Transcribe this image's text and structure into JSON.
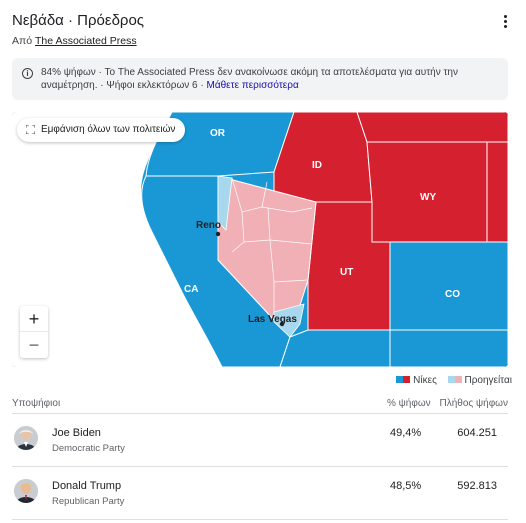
{
  "header": {
    "title": "Νεβάδα · Πρόεδρος",
    "source_prefix": "Από",
    "source_link": "The Associated Press",
    "menu_icon": "more-vert-icon"
  },
  "info": {
    "icon": "info-icon",
    "text": "84% ψήφων · Το The Associated Press δεν ανακοίνωσε ακόμη τα αποτελέσματα για αυτήν την αναμέτρηση. · Ψήφοι εκλεκτόρων 6 ·",
    "learn_more": "Μάθετε περισσότερα"
  },
  "map": {
    "show_all_label": "Εμφάνιση όλων των πολιτειών",
    "show_all_icon": "expand-icon",
    "zoom_in": "+",
    "zoom_out": "−",
    "labels": {
      "or": "OR",
      "id": "ID",
      "wy": "WY",
      "ca": "CA",
      "ut": "UT",
      "co": "CO",
      "reno": "Reno",
      "las_vegas": "Las Vegas"
    },
    "colors": {
      "dem_win": "#1a98d5",
      "dem_lead": "#a8d8ee",
      "rep_win": "#d4202f",
      "rep_lead": "#f0b0b5",
      "background": "#ffffff"
    }
  },
  "legend": {
    "wins": "Νίκες",
    "leads": "Προηγείται"
  },
  "table": {
    "col_candidate": "Υποψήφιοι",
    "col_pct": "% ψήφων",
    "col_votes": "Πλήθος ψήφων",
    "rows": [
      {
        "name": "Joe Biden",
        "party": "Democratic Party",
        "pct": "49,4%",
        "votes": "604.251"
      },
      {
        "name": "Donald Trump",
        "party": "Republican Party",
        "pct": "48,5%",
        "votes": "592.813"
      }
    ]
  }
}
